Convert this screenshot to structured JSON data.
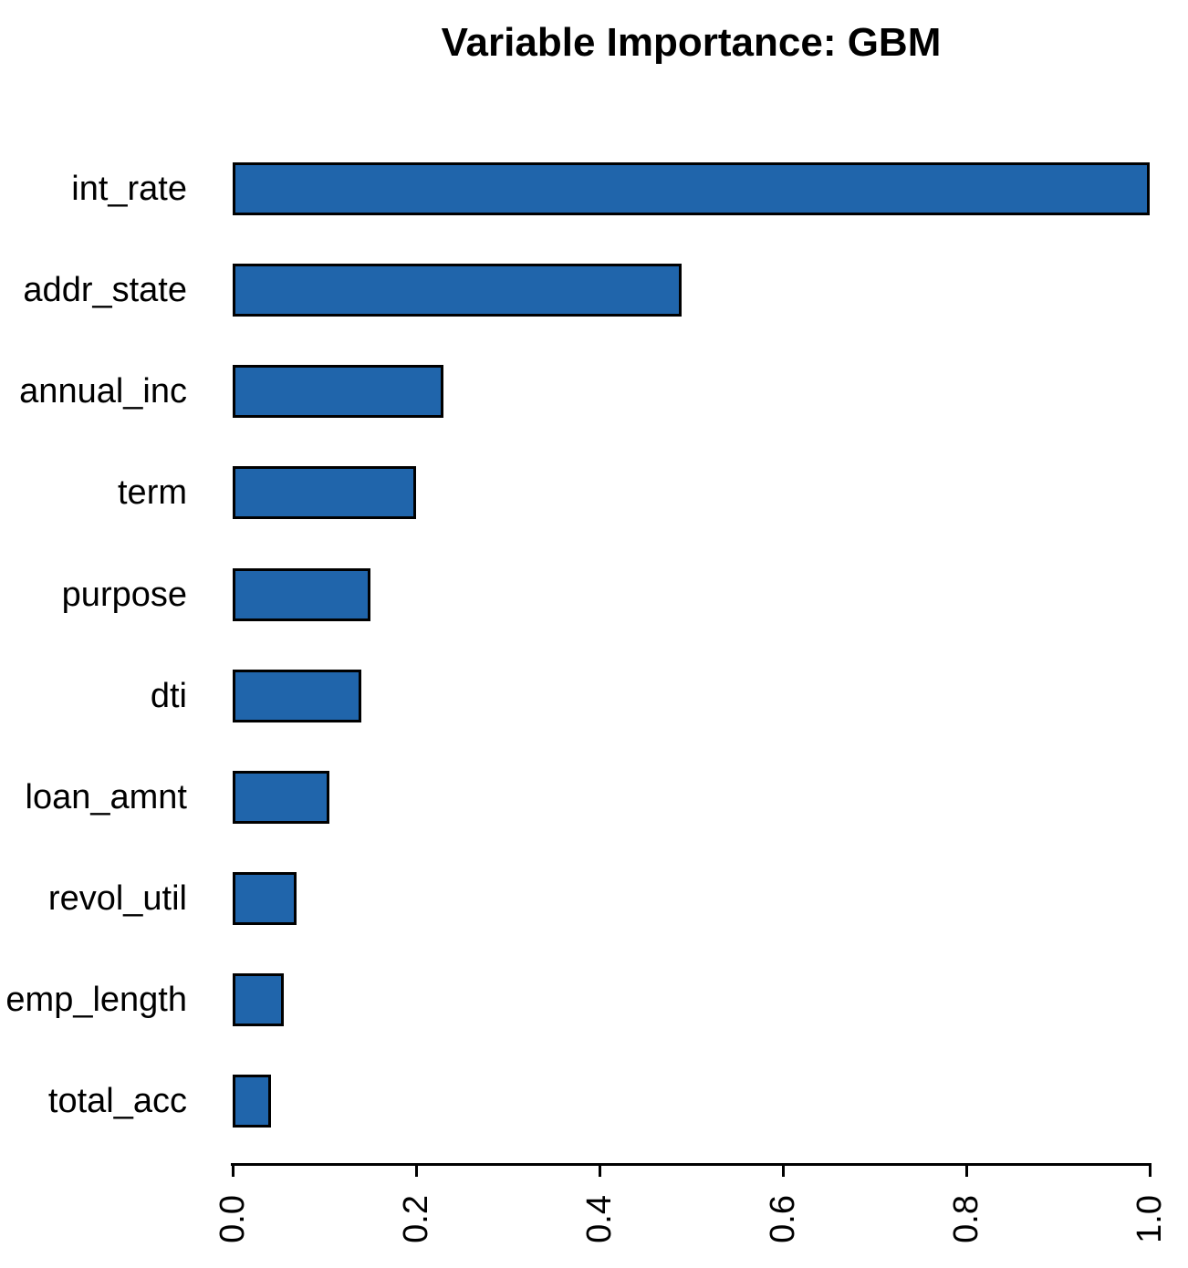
{
  "chart_data": {
    "type": "bar",
    "orientation": "horizontal",
    "title": "Variable Importance: GBM",
    "categories": [
      "int_rate",
      "addr_state",
      "annual_inc",
      "term",
      "purpose",
      "dti",
      "loan_amnt",
      "revol_util",
      "emp_length",
      "total_acc"
    ],
    "values": [
      1.0,
      0.49,
      0.23,
      0.2,
      0.15,
      0.14,
      0.105,
      0.07,
      0.056,
      0.042
    ],
    "x_ticks": [
      "0.0",
      "0.2",
      "0.4",
      "0.6",
      "0.8",
      "1.0"
    ],
    "x_tick_values": [
      0.0,
      0.2,
      0.4,
      0.6,
      0.8,
      1.0
    ],
    "xlim": [
      0.0,
      1.0
    ],
    "xlabel": "",
    "ylabel": "",
    "grid": false,
    "legend": false,
    "bar_color": "#2065ab",
    "bar_border_color": "#000000",
    "axis_color": "#000000",
    "text_color": "#000000",
    "background_color": "#ffffff"
  }
}
